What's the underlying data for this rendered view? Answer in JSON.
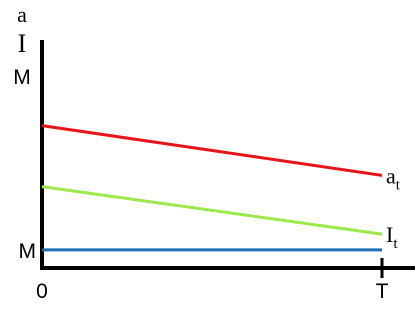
{
  "chart_data": {
    "type": "line",
    "y_axis_labels": {
      "top": "a",
      "middle": "I",
      "bottom": "M"
    },
    "x_ticks": {
      "start": "0",
      "end": "T"
    },
    "y_tick_label": "M",
    "x": [
      0,
      1
    ],
    "xlim": [
      0,
      1
    ],
    "ylim": [
      0,
      1
    ],
    "grid": false,
    "series": [
      {
        "label_base": "a",
        "label_sub": "t",
        "color": "#e8141b",
        "values": [
          0.63,
          0.41
        ]
      },
      {
        "label_base": "I",
        "label_sub": "t",
        "color": "#9de84a",
        "values": [
          0.36,
          0.15
        ]
      },
      {
        "label_base": "",
        "label_sub": "",
        "color": "#1f6fb4",
        "values": [
          0.08,
          0.08
        ]
      }
    ]
  }
}
